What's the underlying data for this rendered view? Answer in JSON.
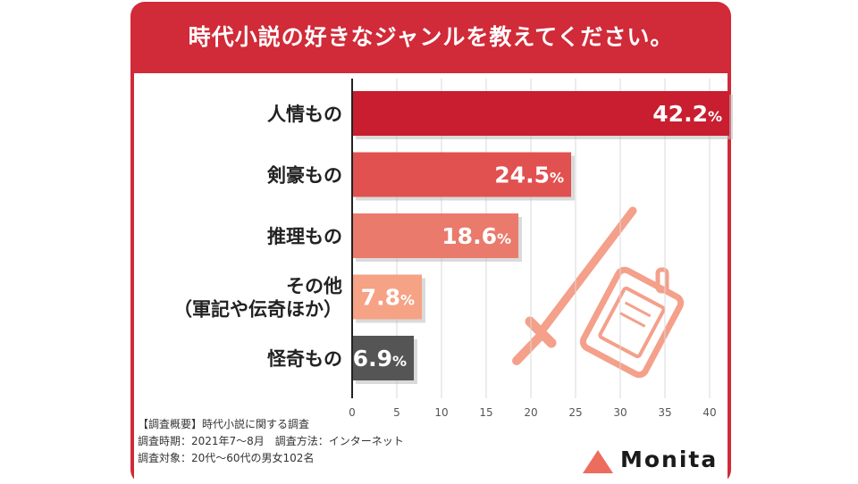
{
  "title": "時代小説の好きなジャンルを教えてください。",
  "chart_data": {
    "type": "bar",
    "orientation": "horizontal",
    "categories": [
      "人情もの",
      "剣豪もの",
      "推理もの",
      "その他\n（軍記や伝奇ほか）",
      "怪奇もの"
    ],
    "values": [
      42.2,
      24.5,
      18.6,
      7.8,
      6.9
    ],
    "unit": "%",
    "xlim": [
      0,
      40
    ],
    "xticks": [
      0,
      5,
      10,
      15,
      20,
      25,
      30,
      35,
      40
    ],
    "colors": [
      "#c81e2f",
      "#e0514f",
      "#ea7a6b",
      "#f5a285",
      "#555555"
    ],
    "grid": true
  },
  "survey": {
    "line1": "【調査概要】時代小説に関する調査",
    "line2": "調査時期：2021年7〜8月　調査方法：インターネット",
    "line3": "調査対象：20代〜60代の男女102名"
  },
  "brand": {
    "name": "Monita",
    "color": "#ec6d5e"
  },
  "illustration": {
    "icons": [
      "sword-icon",
      "notebook-icon"
    ],
    "color": "#f4a08a"
  }
}
